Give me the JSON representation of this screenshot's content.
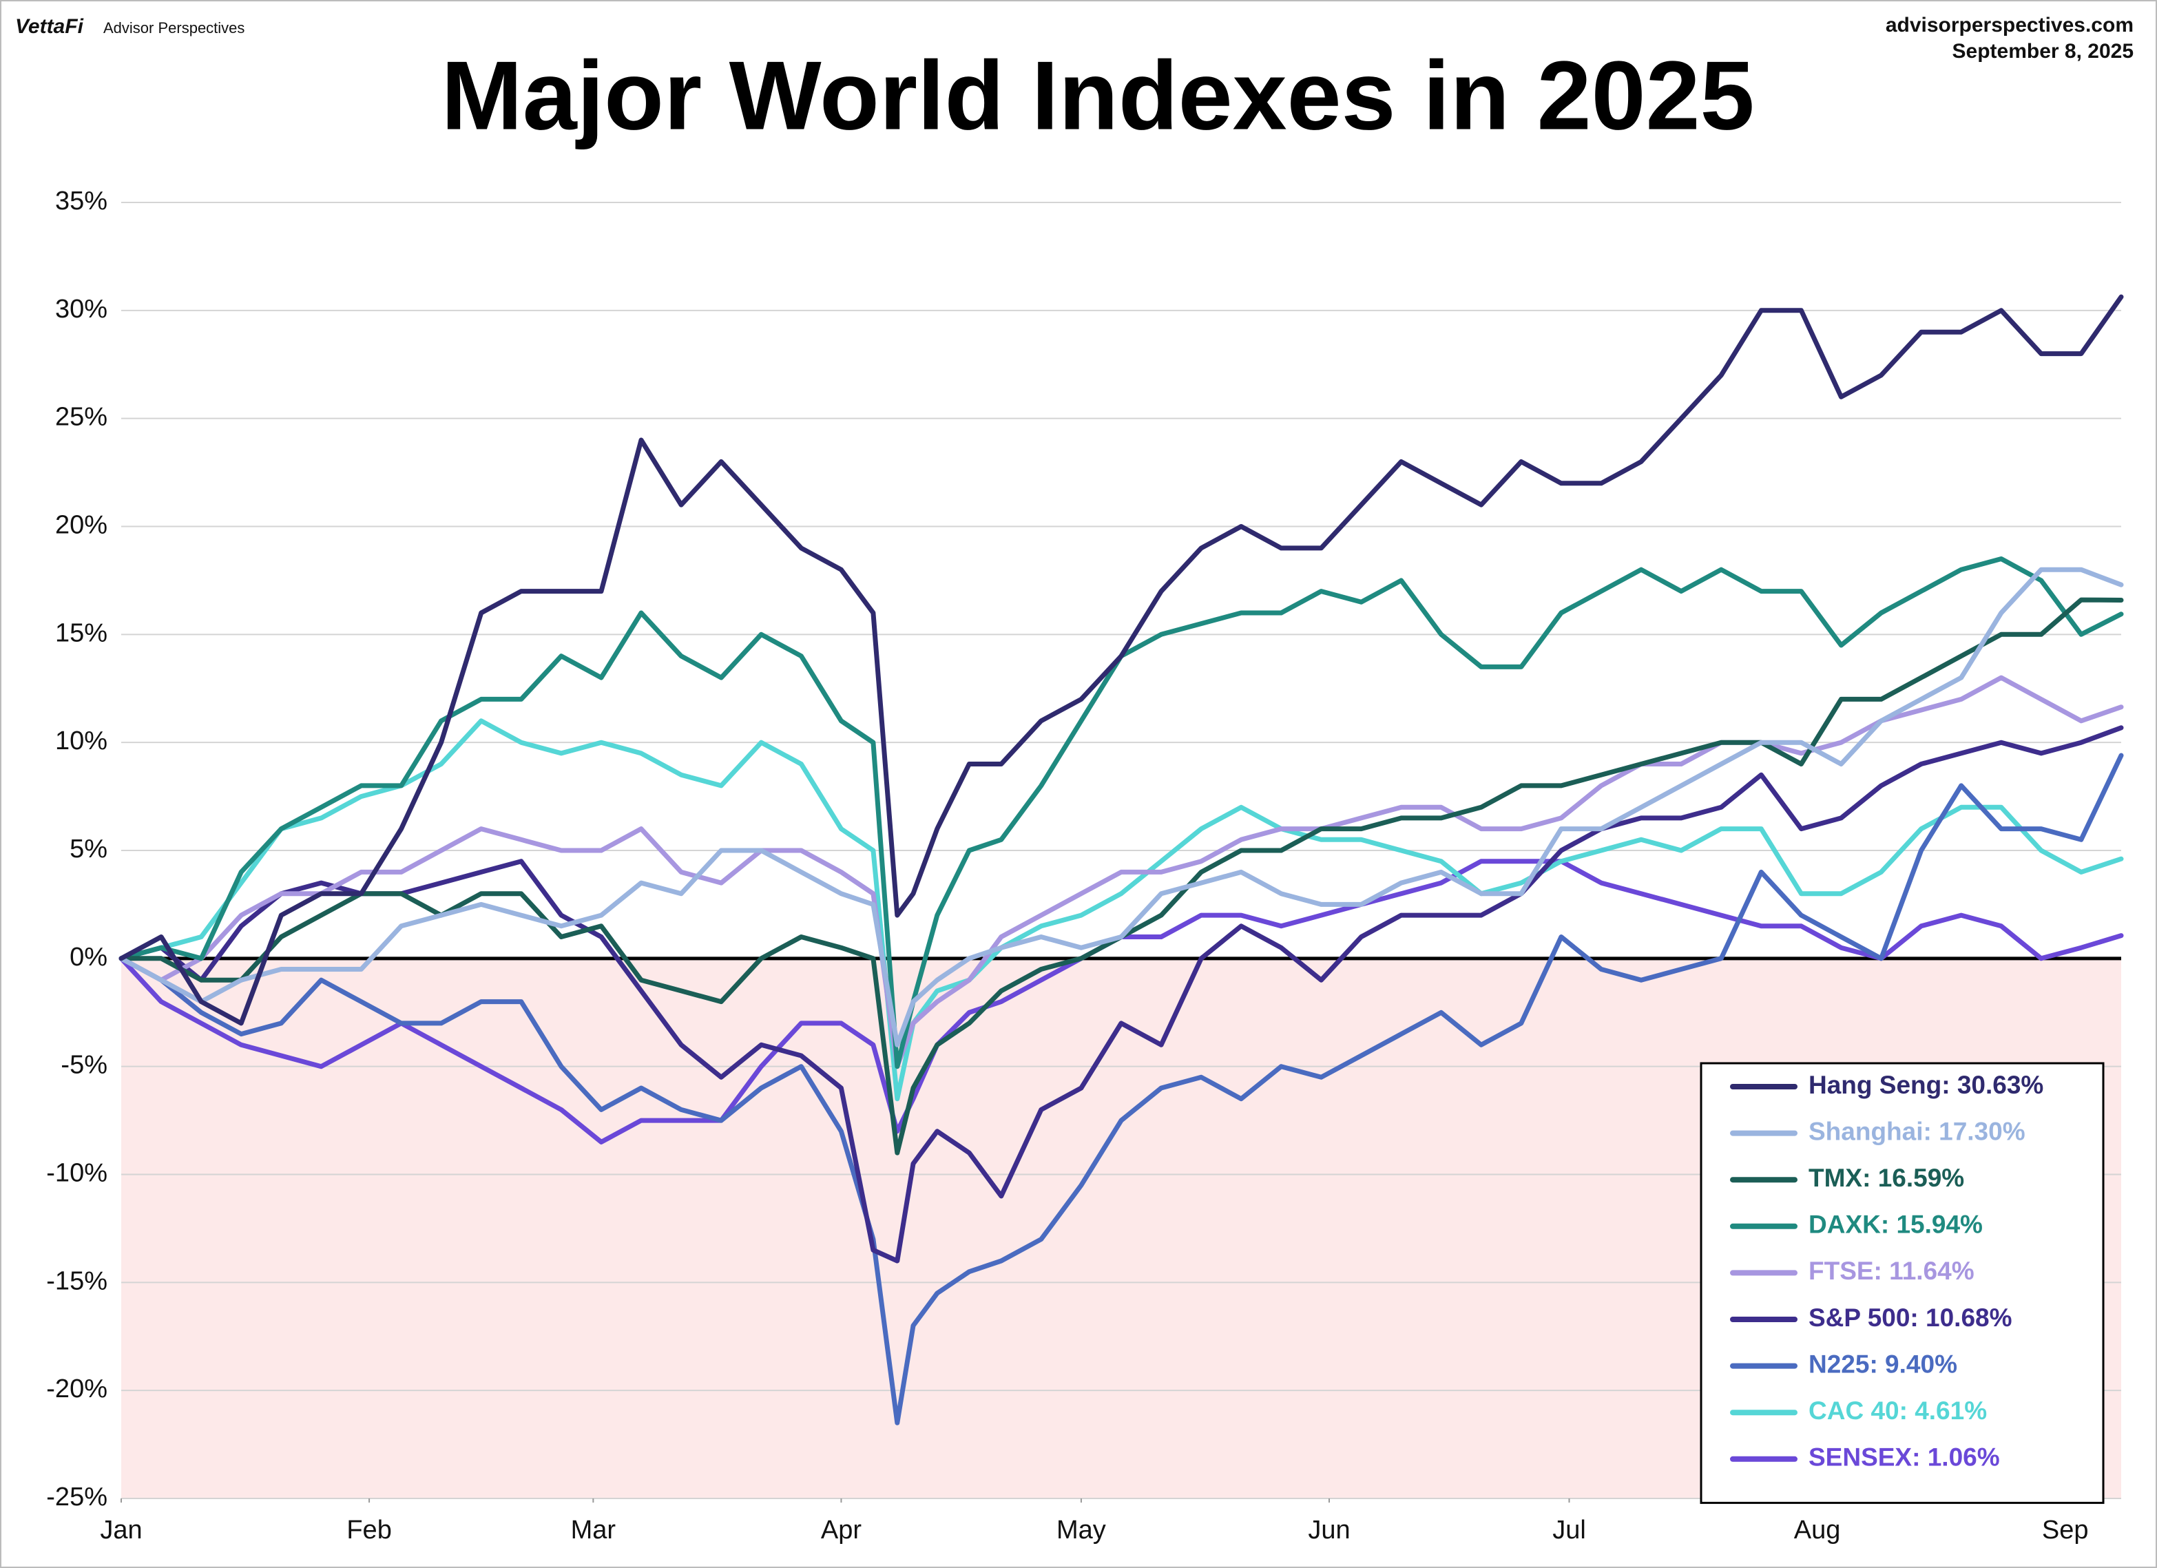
{
  "chart_data": {
    "type": "line",
    "brand": "VettaFi",
    "brand_sub": "Advisor Perspectives",
    "source": "advisorperspectives.com",
    "date": "September 8, 2025",
    "title": "Major World Indexes in 2025",
    "x": [
      0,
      5,
      10,
      15,
      20,
      25,
      30,
      35,
      40,
      45,
      50,
      55,
      60,
      65,
      70,
      75,
      80,
      85,
      90,
      94,
      97,
      99,
      102,
      106,
      110,
      115,
      120,
      125,
      130,
      135,
      140,
      145,
      150,
      155,
      160,
      165,
      170,
      175,
      180,
      185,
      190,
      195,
      200,
      205,
      210,
      215,
      220,
      225,
      230,
      235,
      240,
      245,
      250
    ],
    "xlim": [
      0,
      250
    ],
    "xticks": [
      {
        "value": 0,
        "label": "Jan"
      },
      {
        "value": 31,
        "label": "Feb"
      },
      {
        "value": 59,
        "label": "Mar"
      },
      {
        "value": 90,
        "label": "Apr"
      },
      {
        "value": 120,
        "label": "May"
      },
      {
        "value": 151,
        "label": "Jun"
      },
      {
        "value": 181,
        "label": "Jul"
      },
      {
        "value": 212,
        "label": "Aug"
      },
      {
        "value": 243,
        "label": "Sep"
      }
    ],
    "ylim": [
      -25,
      35
    ],
    "yticks": [
      {
        "value": -25,
        "label": "-25%"
      },
      {
        "value": -20,
        "label": "-20%"
      },
      {
        "value": -15,
        "label": "-15%"
      },
      {
        "value": -10,
        "label": "-10%"
      },
      {
        "value": -5,
        "label": "-5%"
      },
      {
        "value": 0,
        "label": "0%"
      },
      {
        "value": 5,
        "label": "5%"
      },
      {
        "value": 10,
        "label": "10%"
      },
      {
        "value": 15,
        "label": "15%"
      },
      {
        "value": 20,
        "label": "20%"
      },
      {
        "value": 25,
        "label": "25%"
      },
      {
        "value": 30,
        "label": "30%"
      },
      {
        "value": 35,
        "label": "35%"
      }
    ],
    "grid": true,
    "negative_fill": "#fde9e9",
    "legend": "lower right",
    "series": [
      {
        "name": "Hang Seng: 30.63%",
        "color": "#2f2a6e",
        "values": [
          0,
          1,
          -2,
          -3,
          2,
          3,
          3,
          6,
          10,
          16,
          17,
          17,
          17,
          24,
          21,
          23,
          21,
          19,
          18,
          16,
          2,
          3,
          6,
          9,
          9,
          11,
          12,
          14,
          17,
          19,
          20,
          19,
          19,
          21,
          23,
          22,
          21,
          23,
          22,
          22,
          23,
          25,
          27,
          30,
          30,
          26,
          27,
          29,
          29,
          30,
          28,
          28,
          30.63
        ]
      },
      {
        "name": "Shanghai: 17.30%",
        "color": "#9ab4df",
        "values": [
          0,
          -1,
          -2,
          -1,
          -0.5,
          -0.5,
          -0.5,
          1.5,
          2,
          2.5,
          2,
          1.5,
          2,
          3.5,
          3,
          5,
          5,
          4,
          3,
          2.5,
          -4,
          -2,
          -1,
          0,
          0.5,
          1,
          0.5,
          1,
          3,
          3.5,
          4,
          3,
          2.5,
          2.5,
          3.5,
          4,
          3,
          3,
          6,
          6,
          7,
          8,
          9,
          10,
          10,
          9,
          11,
          12,
          13,
          16,
          18,
          18,
          17.3
        ]
      },
      {
        "name": "TMX: 16.59%",
        "color": "#1b5e56",
        "values": [
          0,
          0,
          -1,
          -1,
          1,
          2,
          3,
          3,
          2,
          3,
          3,
          1,
          1.5,
          -1,
          -1.5,
          -2,
          0,
          1,
          0.5,
          0,
          -9,
          -6,
          -4,
          -3,
          -1.5,
          -0.5,
          0,
          1,
          2,
          4,
          5,
          5,
          6,
          6,
          6.5,
          6.5,
          7,
          8,
          8,
          8.5,
          9,
          9.5,
          10,
          10,
          9,
          12,
          12,
          13,
          14,
          15,
          15,
          16.6,
          16.59
        ]
      },
      {
        "name": "DAXK: 15.94%",
        "color": "#1f8a80",
        "values": [
          0,
          0.5,
          0,
          4,
          6,
          7,
          8,
          8,
          11,
          12,
          12,
          14,
          13,
          16,
          14,
          13,
          15,
          14,
          11,
          10,
          -5,
          -2,
          2,
          5,
          5.5,
          8,
          11,
          14,
          15,
          15.5,
          16,
          16,
          17,
          16.5,
          17.5,
          15,
          13.5,
          13.5,
          16,
          17,
          18,
          17,
          18,
          17,
          17,
          14.5,
          16,
          17,
          18,
          18.5,
          17.5,
          15,
          15.94
        ]
      },
      {
        "name": "FTSE: 11.64%",
        "color": "#a796e0",
        "values": [
          0,
          -1,
          0,
          2,
          3,
          3,
          4,
          4,
          5,
          6,
          5.5,
          5,
          5,
          6,
          4,
          3.5,
          5,
          5,
          4,
          3,
          -5,
          -3,
          -2,
          -1,
          1,
          2,
          3,
          4,
          4,
          4.5,
          5.5,
          6,
          6,
          6.5,
          7,
          7,
          6,
          6,
          6.5,
          8,
          9,
          9,
          10,
          10,
          9.5,
          10,
          11,
          11.5,
          12,
          13,
          12,
          11,
          11.64
        ]
      },
      {
        "name": "S&P 500: 10.68%",
        "color": "#3d2d8c",
        "values": [
          0,
          0.5,
          -1,
          1.5,
          3,
          3.5,
          3,
          3,
          3.5,
          4,
          4.5,
          2,
          1,
          -1.5,
          -4,
          -5.5,
          -4,
          -4.5,
          -6,
          -13.5,
          -14,
          -9.5,
          -8,
          -9,
          -11,
          -7,
          -6,
          -3,
          -4,
          0,
          1.5,
          0.5,
          -1,
          1,
          2,
          2,
          2,
          3,
          5,
          6,
          6.5,
          6.5,
          7,
          8.5,
          6,
          6.5,
          8,
          9,
          9.5,
          10,
          9.5,
          10,
          10.68
        ]
      },
      {
        "name": "N225: 9.40%",
        "color": "#4a6bc0",
        "values": [
          0,
          -1,
          -2.5,
          -3.5,
          -3,
          -1,
          -2,
          -3,
          -3,
          -2,
          -2,
          -5,
          -7,
          -6,
          -7,
          -7.5,
          -6,
          -5,
          -8,
          -13,
          -21.5,
          -17,
          -15.5,
          -14.5,
          -14,
          -13,
          -10.5,
          -7.5,
          -6,
          -5.5,
          -6.5,
          -5,
          -5.5,
          -4.5,
          -3.5,
          -2.5,
          -4,
          -3,
          1,
          -0.5,
          -1,
          -0.5,
          0,
          4,
          2,
          1,
          0,
          5,
          8,
          6,
          6,
          5.5,
          9.4
        ]
      },
      {
        "name": "CAC 40: 4.61%",
        "color": "#55d6d6",
        "values": [
          0,
          0.5,
          1,
          3.5,
          6,
          6.5,
          7.5,
          8,
          9,
          11,
          10,
          9.5,
          10,
          9.5,
          8.5,
          8,
          10,
          9,
          6,
          5,
          -6.5,
          -3,
          -1.5,
          -1,
          0.5,
          1.5,
          2,
          3,
          4.5,
          6,
          7,
          6,
          5.5,
          5.5,
          5,
          4.5,
          3,
          3.5,
          4.5,
          5,
          5.5,
          5,
          6,
          6,
          3,
          3,
          4,
          6,
          7,
          7,
          5,
          4,
          4.61
        ]
      },
      {
        "name": "SENSEX: 1.06%",
        "color": "#6a48d8",
        "values": [
          0,
          -2,
          -3,
          -4,
          -4.5,
          -5,
          -4,
          -3,
          -4,
          -5,
          -6,
          -7,
          -8.5,
          -7.5,
          -7.5,
          -7.5,
          -5,
          -3,
          -3,
          -4,
          -8,
          -6.5,
          -4,
          -2.5,
          -2,
          -1,
          0,
          1,
          1,
          2,
          2,
          1.5,
          2,
          2.5,
          3,
          3.5,
          4.5,
          4.5,
          4.5,
          3.5,
          3,
          2.5,
          2,
          1.5,
          1.5,
          0.5,
          0,
          1.5,
          2,
          1.5,
          0,
          0.5,
          1.06
        ]
      }
    ]
  }
}
